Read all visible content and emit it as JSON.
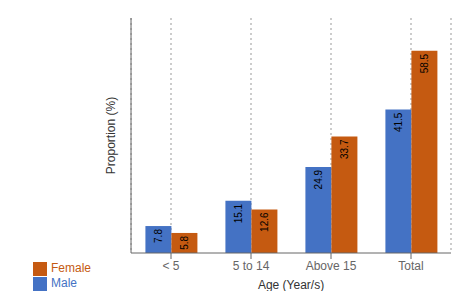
{
  "chart_data": {
    "type": "bar",
    "categories": [
      "< 5",
      "5 to 14",
      "Above 15",
      "Total"
    ],
    "series": [
      {
        "name": "Male",
        "color": "#4472C4",
        "values": [
          7.8,
          15.1,
          24.9,
          41.5
        ]
      },
      {
        "name": "Female",
        "color": "#C55A11",
        "values": [
          5.8,
          12.6,
          33.7,
          58.5
        ]
      }
    ],
    "xlabel": "Age (Year/s)",
    "ylabel": "Proportion (%)",
    "ylim": [
      0,
      68
    ],
    "grid": true,
    "legend": "lower left",
    "data_labels": true,
    "tick_labels": "x"
  }
}
